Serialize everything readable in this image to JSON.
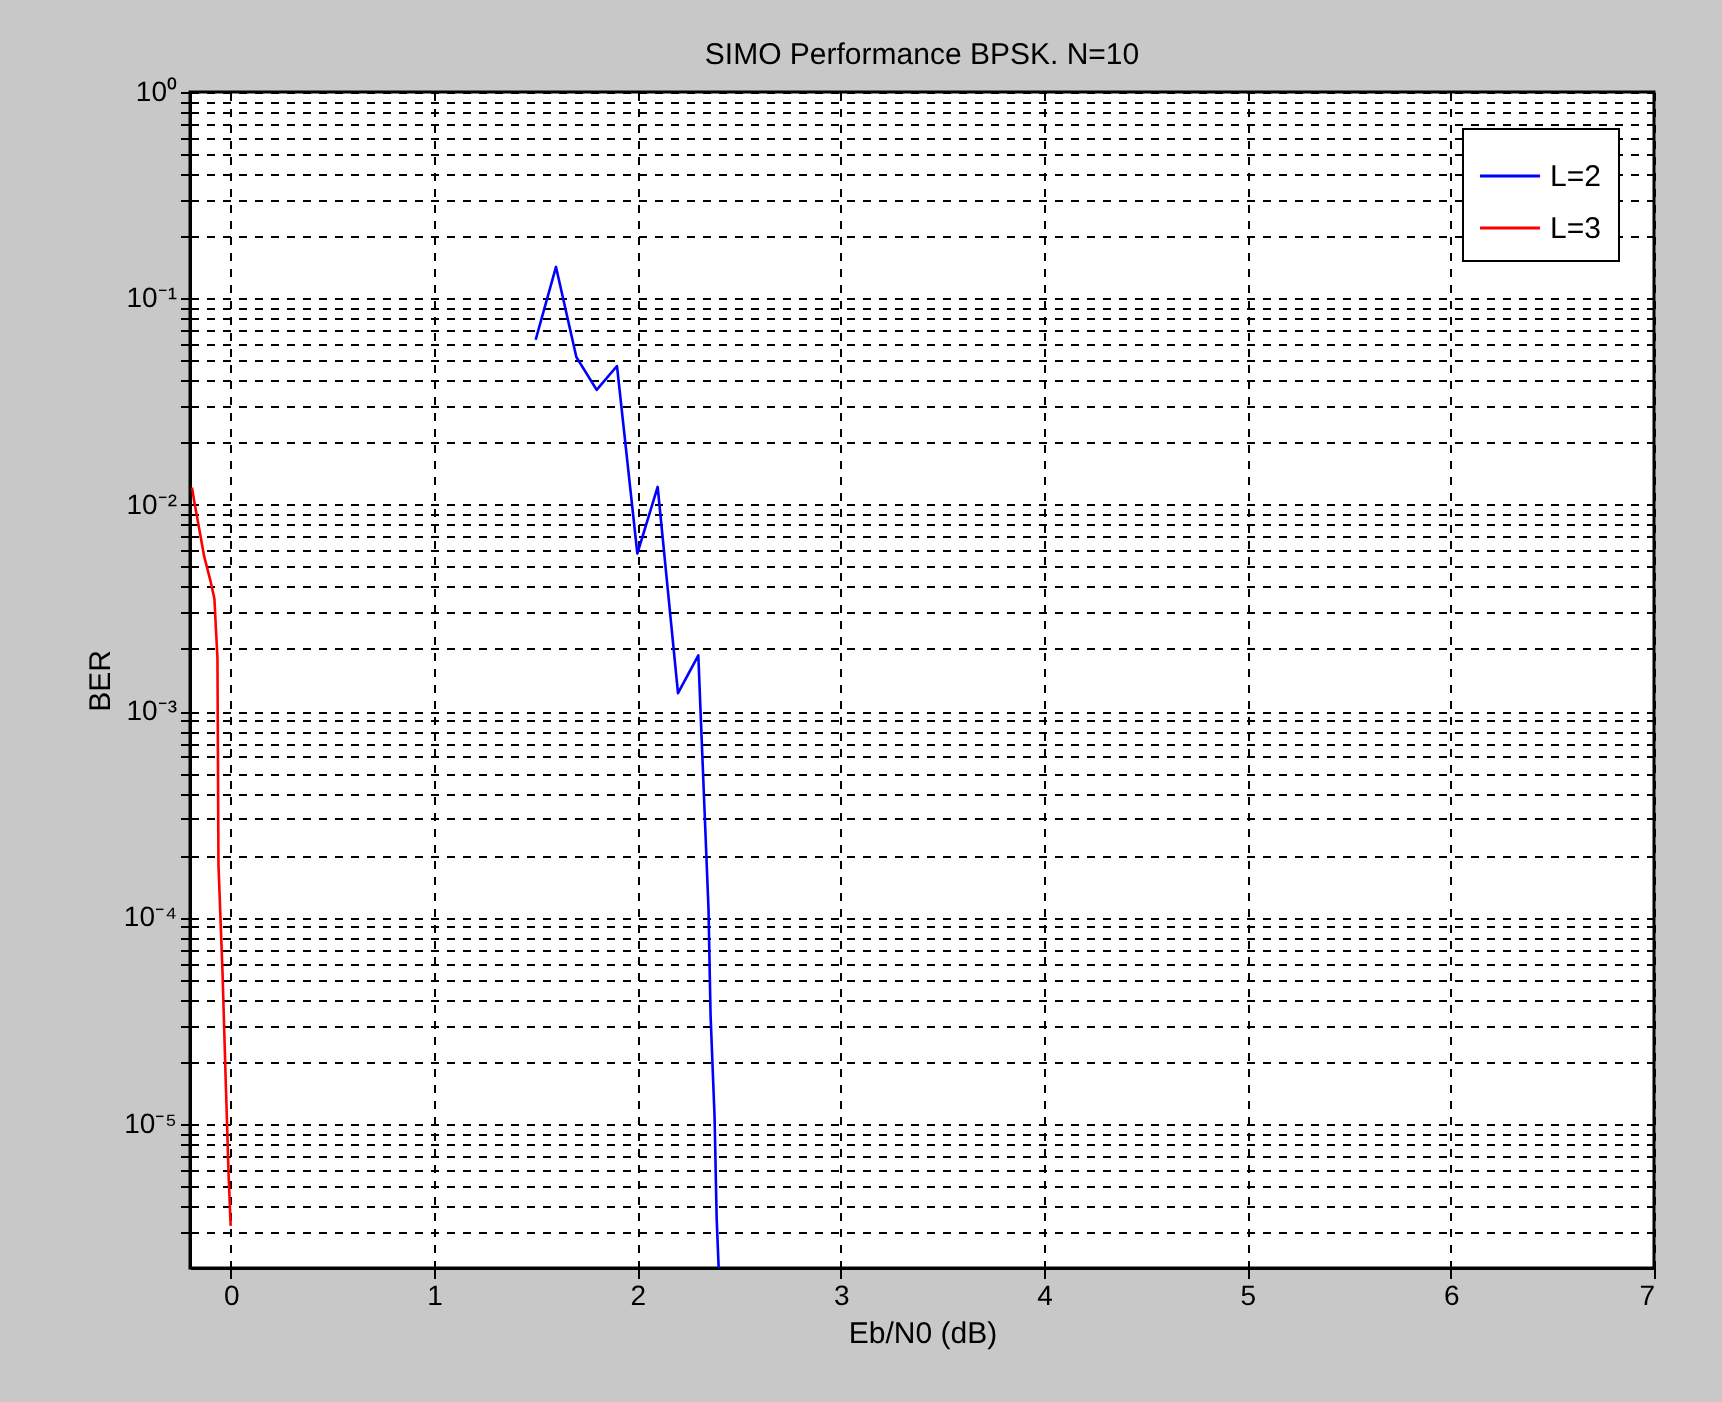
{
  "chart_data": {
    "type": "line",
    "title": "SIMO Performance BPSK. N=10",
    "xlabel": "Eb/N0 (dB)",
    "ylabel": "BER",
    "log": "y",
    "grid": true,
    "legend": "top right",
    "xlim": [
      -0.2,
      7
    ],
    "xticks": [
      0,
      1,
      2,
      3,
      4,
      5,
      6,
      7
    ],
    "ylim": [
      2e-06,
      1
    ],
    "yticks": [
      {
        "value": 1,
        "label": "10⁰"
      },
      {
        "value": 0.9,
        "label": null
      },
      {
        "value": 0.8,
        "label": null
      },
      {
        "value": 0.7,
        "label": null
      },
      {
        "value": 0.6,
        "label": null
      },
      {
        "value": 0.5,
        "label": null
      },
      {
        "value": 0.4,
        "label": null
      },
      {
        "value": 0.3,
        "label": null
      },
      {
        "value": 0.2,
        "label": null
      },
      {
        "value": 0.1,
        "label": "10⁻¹"
      },
      {
        "value": 0.09,
        "label": null
      },
      {
        "value": 0.08,
        "label": null
      },
      {
        "value": 0.07,
        "label": null
      },
      {
        "value": 0.06,
        "label": null
      },
      {
        "value": 0.05,
        "label": null
      },
      {
        "value": 0.04,
        "label": null
      },
      {
        "value": 0.03,
        "label": null
      },
      {
        "value": 0.02,
        "label": null
      },
      {
        "value": 0.01,
        "label": "10⁻²"
      },
      {
        "value": 0.009,
        "label": null
      },
      {
        "value": 0.008,
        "label": null
      },
      {
        "value": 0.007,
        "label": null
      },
      {
        "value": 0.006,
        "label": null
      },
      {
        "value": 0.005,
        "label": null
      },
      {
        "value": 0.004,
        "label": null
      },
      {
        "value": 0.003,
        "label": null
      },
      {
        "value": 0.002,
        "label": null
      },
      {
        "value": 0.001,
        "label": "10⁻³"
      },
      {
        "value": 0.0009,
        "label": null
      },
      {
        "value": 0.0008,
        "label": null
      },
      {
        "value": 0.0007,
        "label": null
      },
      {
        "value": 0.0006,
        "label": null
      },
      {
        "value": 0.0005,
        "label": null
      },
      {
        "value": 0.0004,
        "label": null
      },
      {
        "value": 0.0003,
        "label": null
      },
      {
        "value": 0.0002,
        "label": null
      },
      {
        "value": 0.0001,
        "label": "10⁻⁴"
      },
      {
        "value": 9e-05,
        "label": null
      },
      {
        "value": 8e-05,
        "label": null
      },
      {
        "value": 7e-05,
        "label": null
      },
      {
        "value": 6e-05,
        "label": null
      },
      {
        "value": 5e-05,
        "label": null
      },
      {
        "value": 4e-05,
        "label": null
      },
      {
        "value": 3e-05,
        "label": null
      },
      {
        "value": 2e-05,
        "label": null
      },
      {
        "value": 1e-05,
        "label": "10⁻⁵"
      },
      {
        "value": 9e-06,
        "label": null
      },
      {
        "value": 8e-06,
        "label": null
      },
      {
        "value": 7e-06,
        "label": null
      },
      {
        "value": 6e-06,
        "label": null
      },
      {
        "value": 5e-06,
        "label": null
      },
      {
        "value": 4e-06,
        "label": null
      },
      {
        "value": 3e-06,
        "label": null
      }
    ],
    "series": [
      {
        "name": "L=2",
        "color": "#0000ff",
        "line_style": "solid",
        "x": [
          1.5,
          1.6,
          1.7,
          1.8,
          1.9,
          2.0,
          2.1,
          2.2,
          2.3,
          2.31,
          2.33,
          2.35,
          2.36,
          2.38,
          2.39,
          2.4
        ],
        "values": [
          0.063,
          0.142,
          0.052,
          0.036,
          0.047,
          0.0058,
          0.0122,
          0.00122,
          0.00186,
          0.00105,
          0.00034,
          0.00011,
          3.4e-05,
          1.07e-05,
          3.5e-06,
          2e-06
        ]
      },
      {
        "name": "L=3",
        "color": "#ff0000",
        "line_style": "solid",
        "x": [
          -0.19,
          -0.18,
          -0.15,
          -0.13,
          -0.1,
          -0.08,
          -0.065,
          -0.06,
          -0.04,
          -0.025,
          -0.01,
          0.0
        ],
        "values": [
          0.0121,
          0.0105,
          0.0072,
          0.0056,
          0.0043,
          0.0035,
          0.0018,
          0.00018,
          5.4e-05,
          1.7e-05,
          5.6e-06,
          3.2e-06
        ]
      }
    ]
  }
}
